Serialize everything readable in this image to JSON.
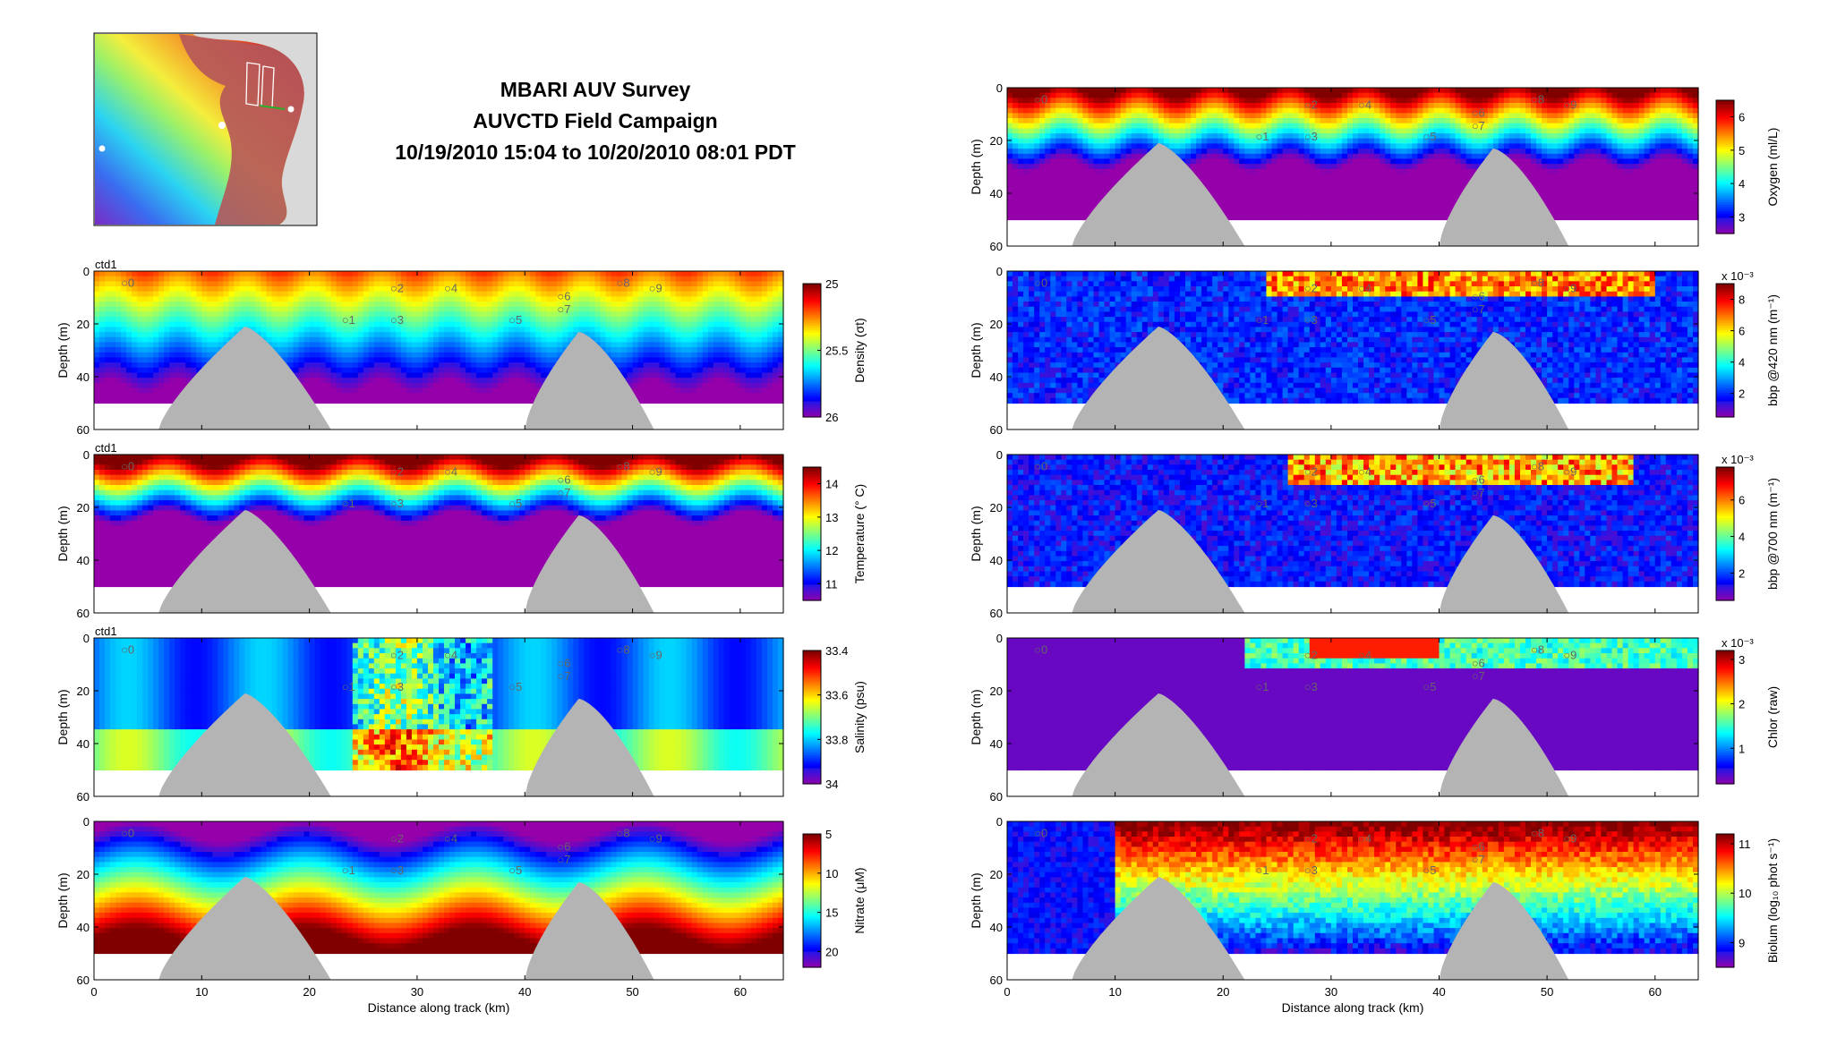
{
  "title": {
    "line1": "MBARI AUV Survey",
    "line2": "AUVCTD Field Campaign",
    "line3": "10/19/2010 15:04 to 10/20/2010 08:01 PDT"
  },
  "axes_common": {
    "xlabel": "Distance along track (km)",
    "ylabel": "Depth (m)",
    "xlim": [
      0,
      64
    ],
    "ylim": [
      0,
      60
    ],
    "xticks": [
      "0",
      "10",
      "20",
      "30",
      "40",
      "50",
      "60"
    ],
    "yticks": [
      "0",
      "20",
      "40",
      "60"
    ]
  },
  "chart_data": [
    {
      "type": "heatmap",
      "column": "left",
      "panel_tag": "ctd1",
      "colorbar_label": "Density (σt)",
      "colorbar_ticks": [
        "25",
        "25.5",
        "26"
      ],
      "color_range": [
        25,
        26
      ],
      "colormap": "reversed-jet",
      "xlabel": "",
      "ylabel": "Depth (m)",
      "xlim": [
        0,
        64
      ],
      "ylim": [
        0,
        60
      ]
    },
    {
      "type": "heatmap",
      "column": "left",
      "panel_tag": "ctd1",
      "colorbar_label": "Temperature (° C)",
      "colorbar_ticks": [
        "14",
        "13",
        "12",
        "11"
      ],
      "color_range": [
        10.5,
        14.5
      ],
      "colormap": "jet",
      "xlabel": "",
      "ylabel": "Depth (m)",
      "xlim": [
        0,
        64
      ],
      "ylim": [
        0,
        60
      ]
    },
    {
      "type": "heatmap",
      "column": "left",
      "panel_tag": "ctd1",
      "colorbar_label": "Salinity (psu)",
      "colorbar_ticks": [
        "33.4",
        "33.6",
        "33.8",
        "34"
      ],
      "color_range": [
        33.4,
        34
      ],
      "colormap": "reversed-jet",
      "xlabel": "",
      "ylabel": "Depth (m)",
      "xlim": [
        0,
        64
      ],
      "ylim": [
        0,
        60
      ]
    },
    {
      "type": "heatmap",
      "column": "left",
      "panel_tag": "",
      "colorbar_label": "Nitrate (μM)",
      "colorbar_ticks": [
        "5",
        "10",
        "15",
        "20"
      ],
      "color_range": [
        5,
        22
      ],
      "colormap": "reversed-jet",
      "xlabel": "Distance along track (km)",
      "ylabel": "Depth (m)",
      "xlim": [
        0,
        64
      ],
      "ylim": [
        0,
        60
      ]
    },
    {
      "type": "heatmap",
      "column": "right",
      "panel_tag": "",
      "colorbar_label": "Oxygen (ml/L)",
      "colorbar_ticks": [
        "6",
        "5",
        "4",
        "3"
      ],
      "color_range": [
        2.5,
        6.5
      ],
      "colormap": "jet",
      "xlabel": "",
      "ylabel": "Depth (m)",
      "xlim": [
        0,
        64
      ],
      "ylim": [
        0,
        60
      ]
    },
    {
      "type": "heatmap",
      "column": "right",
      "panel_tag": "",
      "colorbar_label": "bbp @420 nm (m⁻¹)",
      "colorbar_ticks": [
        "8",
        "6",
        "4",
        "2"
      ],
      "colorbar_scale": "x 10⁻³",
      "color_range": [
        0.0005,
        0.009
      ],
      "colormap": "jet",
      "xlabel": "",
      "ylabel": "Depth (m)",
      "xlim": [
        0,
        64
      ],
      "ylim": [
        0,
        60
      ]
    },
    {
      "type": "heatmap",
      "column": "right",
      "panel_tag": "",
      "colorbar_label": "bbp @700 nm (m⁻¹)",
      "colorbar_ticks": [
        "6",
        "4",
        "2"
      ],
      "colorbar_scale": "x 10⁻³",
      "color_range": [
        0.0005,
        0.0078
      ],
      "colormap": "jet",
      "xlabel": "",
      "ylabel": "Depth (m)",
      "xlim": [
        0,
        64
      ],
      "ylim": [
        0,
        60
      ]
    },
    {
      "type": "heatmap",
      "column": "right",
      "panel_tag": "",
      "colorbar_label": "Chlor (raw)",
      "colorbar_ticks": [
        "3",
        "2",
        "1"
      ],
      "colorbar_scale": "x 10⁻³",
      "color_range": [
        0.0002,
        0.0032
      ],
      "colormap": "jet",
      "xlabel": "",
      "ylabel": "Depth (m)",
      "xlim": [
        0,
        64
      ],
      "ylim": [
        0,
        60
      ]
    },
    {
      "type": "heatmap",
      "column": "right",
      "panel_tag": "",
      "colorbar_label": "Biolum (log₁₀ phot s⁻¹)",
      "colorbar_ticks": [
        "11",
        "10",
        "9"
      ],
      "color_range": [
        8.5,
        11.2
      ],
      "colormap": "jet",
      "xlabel": "Distance along track (km)",
      "ylabel": "Depth (m)",
      "xlim": [
        0,
        64
      ],
      "ylim": [
        0,
        60
      ]
    }
  ],
  "station_marks": [
    {
      "label": "0",
      "x": 2.5,
      "depth": 6
    },
    {
      "label": "1",
      "x": 23,
      "depth": 20
    },
    {
      "label": "2",
      "x": 27.5,
      "depth": 8
    },
    {
      "label": "3",
      "x": 27.5,
      "depth": 20
    },
    {
      "label": "4",
      "x": 32.5,
      "depth": 8
    },
    {
      "label": "5",
      "x": 38.5,
      "depth": 20
    },
    {
      "label": "6",
      "x": 43,
      "depth": 11
    },
    {
      "label": "7",
      "x": 43,
      "depth": 16
    },
    {
      "label": "8",
      "x": 48.5,
      "depth": 6
    },
    {
      "label": "9",
      "x": 51.5,
      "depth": 8
    }
  ],
  "colors": {
    "seafloor": "#b4b4b4",
    "background": "#ffffff"
  }
}
